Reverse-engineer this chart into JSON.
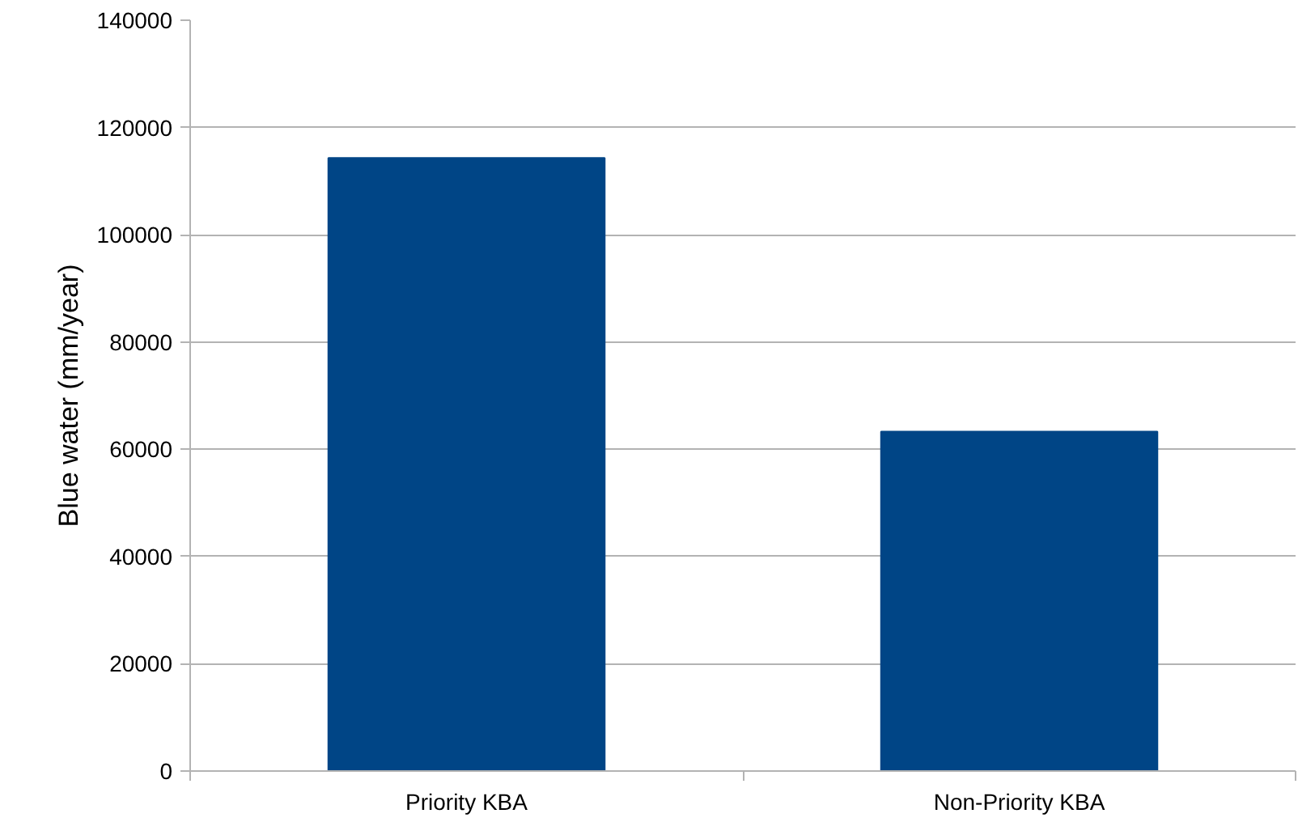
{
  "chart_data": {
    "type": "bar",
    "ylabel": "Blue water (mm/year)",
    "categories": [
      "Priority KBA",
      "Non-Priority KBA"
    ],
    "values": [
      114300,
      63300
    ],
    "color": "#004586",
    "ylim": [
      0,
      140000
    ],
    "yticks": [
      0,
      20000,
      40000,
      60000,
      80000,
      100000,
      120000,
      140000
    ],
    "grid": "y"
  }
}
